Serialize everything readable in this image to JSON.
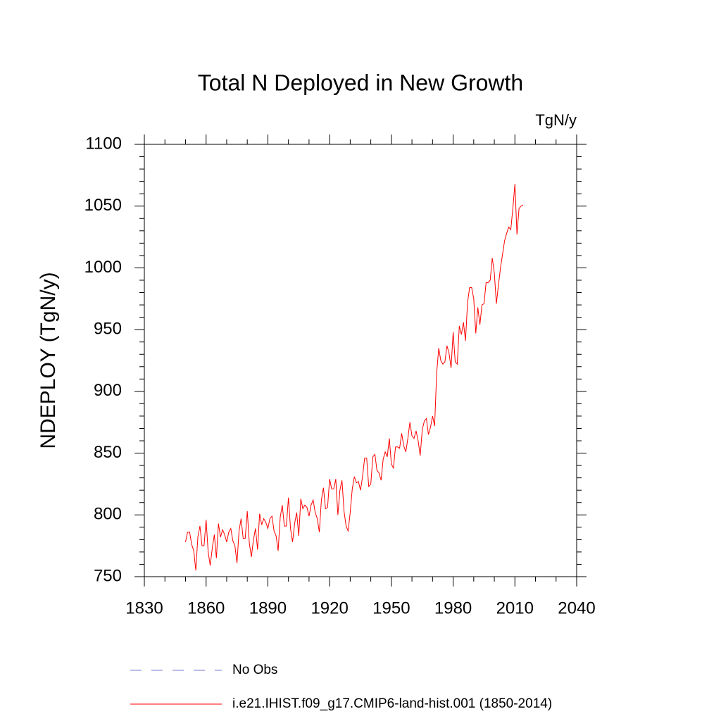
{
  "chart_data": {
    "type": "line",
    "title": "Total N Deployed in New Growth",
    "units": "TgN/y",
    "ylabel": "NDEPLOY  (TgN/y)",
    "x": [
      1850,
      1851,
      1852,
      1853,
      1854,
      1855,
      1856,
      1857,
      1858,
      1859,
      1860,
      1861,
      1862,
      1863,
      1864,
      1865,
      1866,
      1867,
      1868,
      1869,
      1870,
      1871,
      1872,
      1873,
      1874,
      1875,
      1876,
      1877,
      1878,
      1879,
      1880,
      1881,
      1882,
      1883,
      1884,
      1885,
      1886,
      1887,
      1888,
      1889,
      1890,
      1891,
      1892,
      1893,
      1894,
      1895,
      1896,
      1897,
      1898,
      1899,
      1900,
      1901,
      1902,
      1903,
      1904,
      1905,
      1906,
      1907,
      1908,
      1909,
      1910,
      1911,
      1912,
      1913,
      1914,
      1915,
      1916,
      1917,
      1918,
      1919,
      1920,
      1921,
      1922,
      1923,
      1924,
      1925,
      1926,
      1927,
      1928,
      1929,
      1930,
      1931,
      1932,
      1933,
      1934,
      1935,
      1936,
      1937,
      1938,
      1939,
      1940,
      1941,
      1942,
      1943,
      1944,
      1945,
      1946,
      1947,
      1948,
      1949,
      1950,
      1951,
      1952,
      1953,
      1954,
      1955,
      1956,
      1957,
      1958,
      1959,
      1960,
      1961,
      1962,
      1963,
      1964,
      1965,
      1966,
      1967,
      1968,
      1969,
      1970,
      1971,
      1972,
      1973,
      1974,
      1975,
      1976,
      1977,
      1978,
      1979,
      1980,
      1981,
      1982,
      1983,
      1984,
      1985,
      1986,
      1987,
      1988,
      1989,
      1990,
      1991,
      1992,
      1993,
      1994,
      1995,
      1996,
      1997,
      1998,
      1999,
      2000,
      2001,
      2002,
      2003,
      2004,
      2005,
      2006,
      2007,
      2008,
      2009,
      2010,
      2011,
      2012,
      2013,
      2014
    ],
    "series": [
      {
        "name": "No Obs",
        "color": "#7b7bd0",
        "dashed": true,
        "values": [
          null,
          null,
          null,
          null,
          null,
          null,
          null,
          null,
          null,
          null,
          null,
          null,
          null,
          null,
          null,
          null,
          null,
          null,
          null,
          null,
          null,
          null,
          null,
          null,
          null,
          null,
          null,
          null,
          null,
          null,
          null,
          null,
          null,
          null,
          null,
          null,
          null,
          null,
          null,
          null,
          null,
          null,
          null,
          null,
          null,
          null,
          null,
          null,
          null,
          null,
          null,
          null,
          null,
          null,
          null,
          null,
          null,
          null,
          null,
          null,
          null,
          null,
          null,
          null,
          null,
          null,
          null,
          null,
          null,
          null,
          null,
          null,
          null,
          null,
          null,
          null,
          null,
          null,
          null,
          null,
          null,
          null,
          null,
          null,
          null,
          null,
          null,
          null,
          null,
          null,
          null,
          null,
          null,
          null,
          null,
          null,
          null,
          null,
          null,
          null,
          null,
          null,
          null,
          null,
          null,
          null,
          null,
          null,
          null,
          null,
          null,
          null,
          null,
          null,
          null,
          null,
          null,
          null,
          null,
          null,
          null,
          null,
          null,
          null,
          null,
          null,
          null,
          null,
          null,
          null,
          null,
          null,
          null,
          null,
          null,
          null,
          null,
          null,
          null,
          null,
          null,
          null,
          null,
          null,
          null,
          null,
          null,
          null,
          null,
          null,
          null,
          null,
          null,
          null,
          null,
          null,
          null,
          null,
          null,
          null,
          null,
          null,
          null,
          null,
          null
        ]
      },
      {
        "name": "i.e21.IHIST.f09_g17.CMIP6-land-hist.001 (1850-2014)",
        "color": "#ff0000",
        "dashed": false,
        "values": [
          778,
          786,
          786,
          776,
          771,
          755,
          782,
          791,
          775,
          775,
          796,
          770,
          759,
          773,
          784,
          765,
          793,
          782,
          788,
          784,
          778,
          786,
          789,
          779,
          775,
          761,
          787,
          797,
          781,
          781,
          803,
          777,
          766,
          780,
          789,
          772,
          801,
          792,
          797,
          794,
          789,
          797,
          799,
          787,
          783,
          771,
          798,
          808,
          791,
          791,
          814,
          789,
          778,
          793,
          802,
          783,
          813,
          805,
          808,
          806,
          799,
          808,
          812,
          802,
          797,
          786,
          812,
          822,
          805,
          806,
          829,
          821,
          821,
          829,
          800,
          820,
          828,
          803,
          791,
          787,
          802,
          821,
          831,
          826,
          827,
          820,
          831,
          846,
          846,
          823,
          825,
          847,
          849,
          836,
          834,
          828,
          845,
          851,
          847,
          862,
          841,
          838,
          855,
          855,
          854,
          866,
          856,
          851,
          862,
          875,
          864,
          862,
          868,
          860,
          848,
          869,
          876,
          878,
          865,
          871,
          880,
          872,
          915,
          935,
          925,
          922,
          924,
          937,
          931,
          919,
          948,
          924,
          922,
          953,
          946,
          956,
          941,
          972,
          984,
          984,
          975,
          947,
          968,
          954,
          970,
          971,
          988,
          988,
          990,
          1008,
          996,
          971,
          986,
          1000,
          1011,
          1022,
          1028,
          1033,
          1031,
          1048,
          1068,
          1027,
          1048,
          1050,
          1051
        ]
      }
    ],
    "xlim": [
      1830,
      2040
    ],
    "xticks": [
      1830,
      1860,
      1890,
      1920,
      1950,
      1980,
      2010,
      2040
    ],
    "xminorticks": [
      1840,
      1850,
      1870,
      1880,
      1900,
      1910,
      1930,
      1940,
      1960,
      1970,
      1990,
      2000,
      2020,
      2030
    ],
    "ylim": [
      750,
      1100
    ],
    "yticks": [
      750,
      800,
      850,
      900,
      950,
      1000,
      1050,
      1100
    ],
    "yminorticks": [
      760,
      770,
      780,
      790,
      810,
      820,
      830,
      840,
      860,
      870,
      880,
      890,
      910,
      920,
      930,
      940,
      960,
      970,
      980,
      990,
      1010,
      1020,
      1030,
      1040,
      1060,
      1070,
      1080,
      1090
    ]
  }
}
